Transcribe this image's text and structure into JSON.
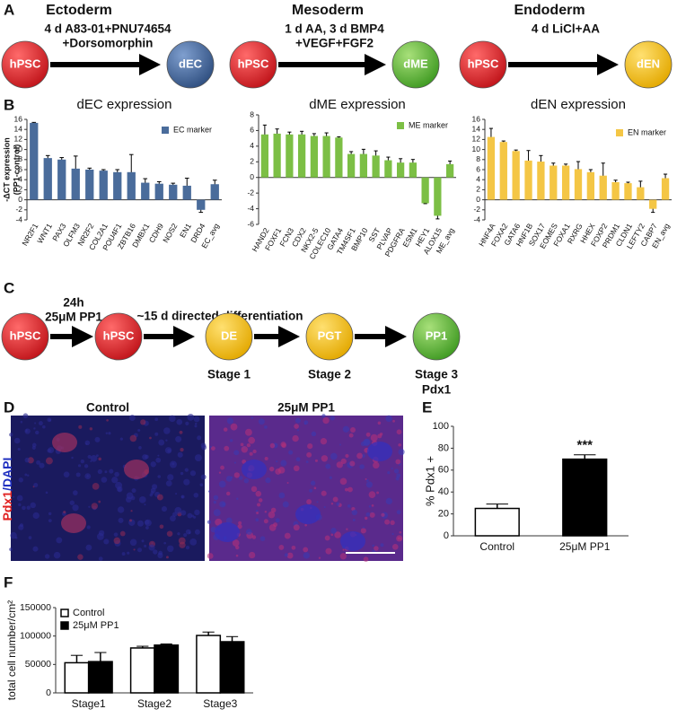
{
  "panel_labels": [
    "A",
    "B",
    "C",
    "D",
    "E",
    "F"
  ],
  "diagram_a": [
    {
      "title": "Ectoderm",
      "condition": [
        "4 d A83-01+PNU74654",
        "+Dorsomorphin"
      ],
      "source": "hPSC",
      "target": "dEC"
    },
    {
      "title": "Mesoderm",
      "condition": [
        "1 d AA, 3 d BMP4",
        "+VEGF+FGF2"
      ],
      "source": "hPSC",
      "target": "dME"
    },
    {
      "title": "Endoderm",
      "condition": [
        "4 d LiCl+AA"
      ],
      "source": "hPSC",
      "target": "dEN"
    }
  ],
  "diagram_c": {
    "start": "hPSC",
    "treatment": [
      "24h",
      "25μM PP1"
    ],
    "treated": "hPSC",
    "differentiation": "~15 d directed differentiation",
    "stages": [
      {
        "node": "DE",
        "label": [
          "Stage 1"
        ]
      },
      {
        "node": "PGT",
        "label": [
          "Stage 2"
        ]
      },
      {
        "node": "PP1",
        "label": [
          "Stage 3",
          "Pdx1"
        ]
      }
    ]
  },
  "panel_d": {
    "titles": [
      "Control",
      "25μM PP1"
    ],
    "stain": [
      "Pdx1",
      "/DAPI"
    ]
  },
  "chart_data": [
    {
      "type": "bar",
      "title": "dEC expression",
      "y_label": [
        "-ΔCT expression",
        "(PP1-control)"
      ],
      "categories": [
        "NR2F1",
        "WNT1",
        "PAX3",
        "OLFM3",
        "NR2F2",
        "COL2A1",
        "POU4F1",
        "ZBTB16",
        "DMBX1",
        "CDH9",
        "NOS2",
        "EN1",
        "DRD4",
        "EC_avg"
      ],
      "series": [
        {
          "name": "EC marker",
          "color": "#4a6c9b",
          "values": [
            15.3,
            8.3,
            8.0,
            6.2,
            6.0,
            5.8,
            5.5,
            5.5,
            3.4,
            3.2,
            3.0,
            2.8,
            -2.0,
            3.1
          ],
          "errors": [
            0.1,
            0.5,
            0.4,
            2.5,
            0.3,
            0.2,
            0.5,
            3.5,
            0.8,
            0.4,
            0.3,
            1.5,
            0.5,
            0.8
          ]
        }
      ],
      "ylim": [
        -4,
        16
      ],
      "yticks": [
        -4,
        -2,
        0,
        2,
        4,
        6,
        8,
        10,
        12,
        14,
        16
      ]
    },
    {
      "type": "bar",
      "title": "dME expression",
      "categories": [
        "HAND2",
        "FOXF1",
        "FCN3",
        "CDX2",
        "NKX2-5",
        "COLEC10",
        "GATA4",
        "TM4SF1",
        "BMP10",
        "SST",
        "PLVAP",
        "PDGFRA",
        "ESM1",
        "HEY1",
        "ALOX15",
        "ME_avg"
      ],
      "series": [
        {
          "name": "ME marker",
          "color": "#7cbf45",
          "values": [
            5.5,
            5.6,
            5.5,
            5.5,
            5.3,
            5.3,
            5.1,
            3.0,
            3.0,
            2.8,
            2.2,
            1.9,
            1.9,
            -3.3,
            -4.9,
            1.7
          ],
          "errors": [
            1.2,
            0.6,
            0.3,
            0.4,
            0.3,
            0.4,
            0.1,
            0.3,
            0.6,
            0.6,
            0.4,
            0.5,
            0.4,
            0.05,
            0.4,
            0.4
          ]
        }
      ],
      "ylim": [
        -6,
        8
      ],
      "yticks": [
        -6,
        -4,
        -2,
        0,
        2,
        4,
        6,
        8
      ]
    },
    {
      "type": "bar",
      "title": "dEN expression",
      "categories": [
        "HNF4A",
        "FOXA2",
        "GATA6",
        "HNF1B",
        "SOX17",
        "EOMES",
        "FOXA1",
        "RXRG",
        "HHEX",
        "FOXP2",
        "PRDM1",
        "CLDN1",
        "LEFTY2",
        "CABP7",
        "EN_avg"
      ],
      "series": [
        {
          "name": "EN marker",
          "color": "#f4c645",
          "values": [
            12.5,
            11.5,
            9.7,
            7.8,
            7.6,
            6.8,
            6.8,
            6.1,
            5.5,
            4.8,
            3.5,
            3.3,
            2.5,
            -1.8,
            4.3
          ],
          "errors": [
            1.7,
            0.2,
            0.2,
            2.0,
            1.2,
            0.5,
            0.3,
            1.5,
            0.5,
            2.5,
            0.4,
            0.2,
            1.2,
            0.7,
            0.8
          ]
        }
      ],
      "ylim": [
        -4,
        16
      ],
      "yticks": [
        -4,
        -2,
        0,
        2,
        4,
        6,
        8,
        10,
        12,
        14,
        16
      ]
    },
    {
      "type": "bar",
      "y_label": [
        "% Pdx1 +"
      ],
      "annotation": "***",
      "categories": [
        "Control",
        "25μM PP1"
      ],
      "series": [
        {
          "colors": [
            "#ffffff",
            "#000000"
          ],
          "values": [
            25,
            70
          ],
          "errors": [
            4,
            4
          ]
        }
      ],
      "ylim": [
        0,
        100
      ],
      "yticks": [
        0,
        20,
        40,
        60,
        80,
        100
      ]
    },
    {
      "type": "grouped_bar",
      "y_label": [
        "total cell number/cm²"
      ],
      "categories": [
        "Stage1",
        "Stage2",
        "Stage3"
      ],
      "series": [
        {
          "name": "Control",
          "color": "#ffffff",
          "values": [
            53000,
            79000,
            101000
          ],
          "errors": [
            13000,
            3000,
            6000
          ]
        },
        {
          "name": "25μM PP1",
          "color": "#000000",
          "values": [
            55000,
            84000,
            90000
          ],
          "errors": [
            16000,
            2000,
            9000
          ]
        }
      ],
      "ylim": [
        0,
        150000
      ],
      "yticks": [
        0,
        50000,
        100000,
        150000
      ]
    }
  ]
}
